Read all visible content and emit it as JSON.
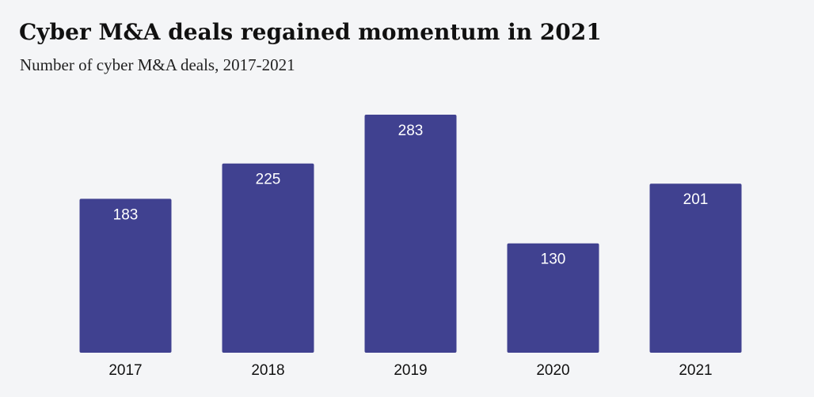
{
  "title": "Cyber M&A deals regained momentum in 2021",
  "subtitle": "Number of cyber M&A deals, 2017-2021",
  "colors": {
    "background": "#f4f5f7",
    "bar": "#404190",
    "bar_label": "#ffffff",
    "text": "#111111"
  },
  "chart_data": {
    "type": "bar",
    "title": "Cyber M&A deals regained momentum in 2021",
    "subtitle": "Number of cyber M&A deals, 2017-2021",
    "xlabel": "",
    "ylabel": "",
    "categories": [
      "2017",
      "2018",
      "2019",
      "2020",
      "2021"
    ],
    "values": [
      183,
      225,
      283,
      130,
      201
    ],
    "ylim": [
      0,
      283
    ],
    "grid": false,
    "legend": "none",
    "data_labels": "inside-top"
  }
}
